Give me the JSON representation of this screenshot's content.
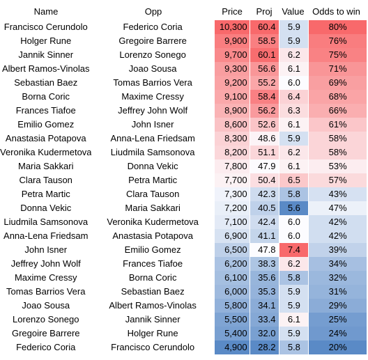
{
  "headers": {
    "name": "Name",
    "opp": "Opp",
    "price": "Price",
    "proj": "Proj",
    "value": "Value",
    "odds": "Odds to win"
  },
  "rows": [
    {
      "name": "Francisco Cerundolo",
      "opp": "Federico Coria",
      "price": "10,300",
      "proj": "60.4",
      "value": "5.9",
      "odds": "80%"
    },
    {
      "name": "Holger Rune",
      "opp": "Gregoire Barrere",
      "price": "9,900",
      "proj": "58.5",
      "value": "5.9",
      "odds": "76%"
    },
    {
      "name": "Jannik Sinner",
      "opp": "Lorenzo Sonego",
      "price": "9,700",
      "proj": "60.1",
      "value": "6.2",
      "odds": "75%"
    },
    {
      "name": "Albert Ramos-Vinolas",
      "opp": "Joao Sousa",
      "price": "9,300",
      "proj": "56.6",
      "value": "6.1",
      "odds": "71%"
    },
    {
      "name": "Sebastian Baez",
      "opp": "Tomas Barrios Vera",
      "price": "9,200",
      "proj": "55.2",
      "value": "6.0",
      "odds": "69%"
    },
    {
      "name": "Borna Coric",
      "opp": "Maxime Cressy",
      "price": "9,100",
      "proj": "58.4",
      "value": "6.4",
      "odds": "68%"
    },
    {
      "name": "Frances Tiafoe",
      "opp": "Jeffrey John Wolf",
      "price": "8,900",
      "proj": "56.2",
      "value": "6.3",
      "odds": "66%"
    },
    {
      "name": "Emilio Gomez",
      "opp": "John Isner",
      "price": "8,600",
      "proj": "52.6",
      "value": "6.1",
      "odds": "61%"
    },
    {
      "name": "Anastasia Potapova",
      "opp": "Anna-Lena Friedsam",
      "price": "8,300",
      "proj": "48.6",
      "value": "5.9",
      "odds": "58%"
    },
    {
      "name": "Veronika Kudermetova",
      "opp": "Liudmila Samsonova",
      "price": "8,200",
      "proj": "51.1",
      "value": "6.2",
      "odds": "58%"
    },
    {
      "name": "Maria Sakkari",
      "opp": "Donna Vekic",
      "price": "7,800",
      "proj": "47.9",
      "value": "6.1",
      "odds": "53%"
    },
    {
      "name": "Clara Tauson",
      "opp": "Petra Martic",
      "price": "7,700",
      "proj": "50.4",
      "value": "6.5",
      "odds": "57%"
    },
    {
      "name": "Petra Martic",
      "opp": "Clara Tauson",
      "price": "7,300",
      "proj": "42.3",
      "value": "5.8",
      "odds": "43%"
    },
    {
      "name": "Donna Vekic",
      "opp": "Maria Sakkari",
      "price": "7,200",
      "proj": "40.5",
      "value": "5.6",
      "odds": "47%"
    },
    {
      "name": "Liudmila Samsonova",
      "opp": "Veronika Kudermetova",
      "price": "7,100",
      "proj": "42.4",
      "value": "6.0",
      "odds": "42%"
    },
    {
      "name": "Anna-Lena Friedsam",
      "opp": "Anastasia Potapova",
      "price": "6,900",
      "proj": "41.1",
      "value": "6.0",
      "odds": "42%"
    },
    {
      "name": "John Isner",
      "opp": "Emilio Gomez",
      "price": "6,500",
      "proj": "47.8",
      "value": "7.4",
      "odds": "39%"
    },
    {
      "name": "Jeffrey John Wolf",
      "opp": "Frances Tiafoe",
      "price": "6,200",
      "proj": "38.3",
      "value": "6.2",
      "odds": "34%"
    },
    {
      "name": "Maxime Cressy",
      "opp": "Borna Coric",
      "price": "6,100",
      "proj": "35.6",
      "value": "5.8",
      "odds": "32%"
    },
    {
      "name": "Tomas Barrios Vera",
      "opp": "Sebastian Baez",
      "price": "6,000",
      "proj": "35.3",
      "value": "5.9",
      "odds": "31%"
    },
    {
      "name": "Joao Sousa",
      "opp": "Albert Ramos-Vinolas",
      "price": "5,800",
      "proj": "34.1",
      "value": "5.9",
      "odds": "29%"
    },
    {
      "name": "Lorenzo Sonego",
      "opp": "Jannik Sinner",
      "price": "5,500",
      "proj": "33.4",
      "value": "6.1",
      "odds": "25%"
    },
    {
      "name": "Gregoire Barrere",
      "opp": "Holger Rune",
      "price": "5,400",
      "proj": "32.0",
      "value": "5.9",
      "odds": "24%"
    },
    {
      "name": "Federico Coria",
      "opp": "Francisco Cerundolo",
      "price": "4,900",
      "proj": "28.2",
      "value": "5.8",
      "odds": "20%"
    }
  ],
  "colors": {
    "high": "#f8696b",
    "mid": "#fcfcff",
    "low": "#5a8ac6"
  }
}
